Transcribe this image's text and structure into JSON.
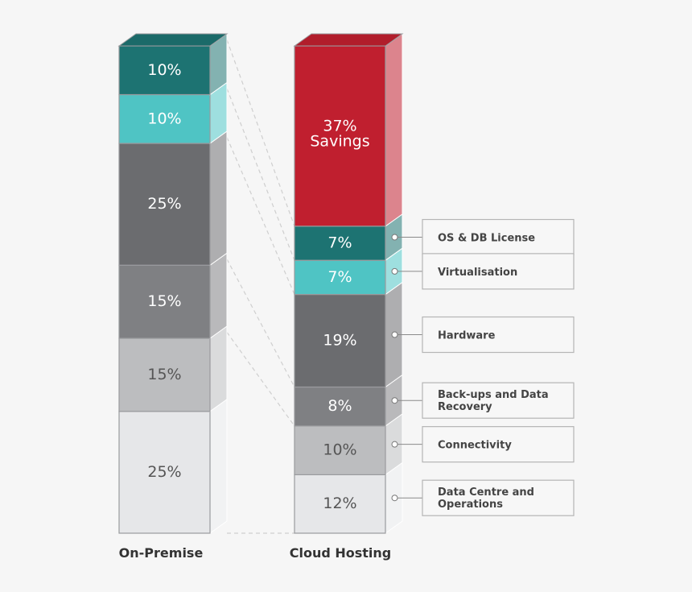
{
  "chart_data": {
    "type": "bar",
    "stacked": true,
    "style": "3d-stacked-columns",
    "categories": [
      "On-Premise",
      "Cloud Hosting"
    ],
    "series": [
      {
        "name": "Data Centre and Operations",
        "values": [
          25,
          12
        ],
        "color": "#e6e7e9",
        "labels": [
          "25%",
          "12%"
        ]
      },
      {
        "name": "Connectivity",
        "values": [
          15,
          10
        ],
        "color": "#bcbdbf",
        "labels": [
          "15%",
          "10%"
        ]
      },
      {
        "name": "Back-ups and Data Recovery",
        "values": [
          15,
          8
        ],
        "color": "#7f8083",
        "labels": [
          "15%",
          "8%"
        ]
      },
      {
        "name": "Hardware",
        "values": [
          25,
          19
        ],
        "color": "#6b6c6f",
        "labels": [
          "25%",
          "19%"
        ]
      },
      {
        "name": "Virtualisation",
        "values": [
          10,
          7
        ],
        "color": "#4fc4c4",
        "labels": [
          "10%",
          "7%"
        ]
      },
      {
        "name": "OS & DB License",
        "values": [
          10,
          7
        ],
        "color": "#1d7372",
        "labels": [
          "10%",
          "7%"
        ]
      }
    ],
    "savings": {
      "value": 37,
      "label_line1": "37%",
      "label_line2": "Savings",
      "color": "#c01f2f"
    },
    "legend_entries": [
      "OS & DB License",
      "Virtualisation",
      "Hardware",
      "Back-ups and Data Recovery",
      "Connectivity",
      "Data Centre and Operations"
    ],
    "legend_placement": "right",
    "ylim": [
      0,
      100
    ]
  }
}
